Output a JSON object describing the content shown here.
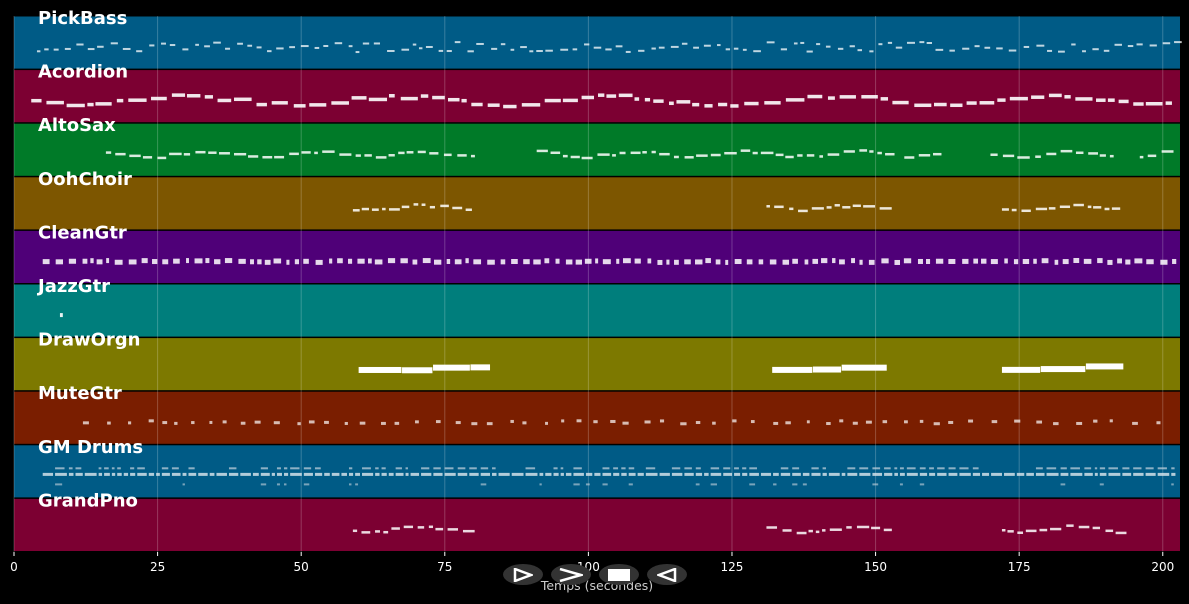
{
  "chart_data": {
    "type": "piano-roll",
    "xlabel": "Temps (secondes)",
    "xlim": [
      0,
      203
    ],
    "xticks": [
      0,
      25,
      50,
      75,
      100,
      125,
      150,
      175,
      200
    ],
    "grid": true,
    "tracks": [
      {
        "name": "PickBass",
        "color": "#005b86",
        "style": "dense-small",
        "segments": [
          [
            4,
            202
          ]
        ]
      },
      {
        "name": "Acordion",
        "color": "#7c0032",
        "style": "wavy-thick",
        "segments": [
          [
            3,
            202
          ]
        ]
      },
      {
        "name": "AltoSax",
        "color": "#007a28",
        "style": "wavy",
        "segments": [
          [
            16,
            80
          ],
          [
            91,
            152
          ],
          [
            155,
            160
          ],
          [
            170,
            192
          ],
          [
            196,
            202
          ]
        ]
      },
      {
        "name": "OohChoir",
        "color": "#7d5600",
        "style": "wavy",
        "segments": [
          [
            59,
            80
          ],
          [
            131,
            152
          ],
          [
            172,
            192
          ]
        ]
      },
      {
        "name": "CleanGtr",
        "color": "#4f0078",
        "style": "dense-blocks",
        "segments": [
          [
            5,
            202
          ]
        ]
      },
      {
        "name": "JazzGtr",
        "color": "#007e7c",
        "style": "sparse",
        "segments": [
          [
            8,
            9
          ]
        ]
      },
      {
        "name": "DrawOrgn",
        "color": "#7d7900",
        "style": "thick-bars",
        "segments": [
          [
            60,
            81
          ],
          [
            132,
            152
          ],
          [
            172,
            193
          ]
        ]
      },
      {
        "name": "MuteGtr",
        "color": "#7a1e00",
        "style": "sparse-dashes",
        "segments": [
          [
            12,
            202
          ]
        ]
      },
      {
        "name": "GM Drums",
        "color": "#005b86",
        "style": "drums",
        "segments": [
          [
            5,
            202
          ]
        ]
      },
      {
        "name": "GrandPno",
        "color": "#7c0032",
        "style": "wavy",
        "segments": [
          [
            59,
            80
          ],
          [
            131,
            152
          ],
          [
            172,
            192
          ]
        ]
      }
    ]
  },
  "controls": {
    "play": "play-icon",
    "fast_forward": "fast-forward-icon",
    "stop": "stop-icon",
    "rewind": "rewind-icon"
  }
}
